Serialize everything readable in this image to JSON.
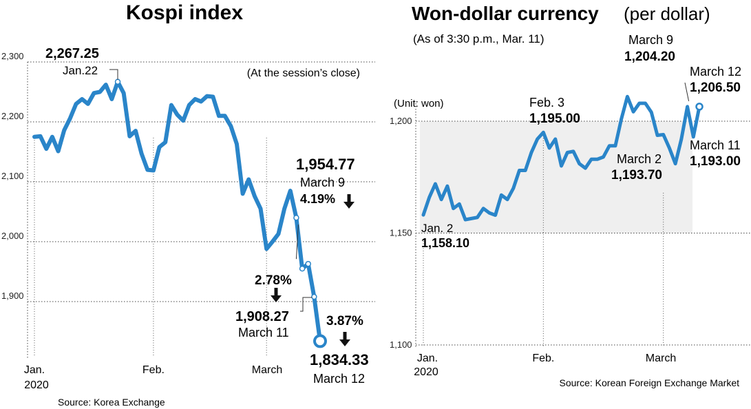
{
  "chart_data": [
    {
      "type": "line",
      "title": "Kospi index",
      "note": "(At the session’s close)",
      "source": "Source: Korea Exchange",
      "yticks": [
        "2,300",
        "2,200",
        "2,100",
        "2,000",
        "1,900"
      ],
      "ylim": [
        1820,
        2320
      ],
      "grid": true,
      "xtick_labels": [
        {
          "label": "Jan.",
          "sub": "2020",
          "at_index": 0
        },
        {
          "label": "Feb.",
          "sub": "",
          "at_index": 20
        },
        {
          "label": "March",
          "sub": "",
          "at_index": 39
        }
      ],
      "series": [
        {
          "color": "#2a85c9",
          "values": [
            2175,
            2176,
            2155,
            2175,
            2151,
            2186,
            2206,
            2230,
            2238,
            2230,
            2248,
            2250,
            2262,
            2238,
            2267,
            2248,
            2176,
            2185,
            2147,
            2120,
            2119,
            2158,
            2166,
            2228,
            2212,
            2202,
            2228,
            2238,
            2234,
            2243,
            2242,
            2210,
            2210,
            2193,
            2163,
            2080,
            2104,
            2076,
            2055,
            1988,
            2000,
            2013,
            2055,
            2085,
            2040,
            1955,
            1963,
            1908,
            1834
          ]
        }
      ],
      "annotations": [
        {
          "value": "2,267.25",
          "label": "Jan.22",
          "at_index": 14
        },
        {
          "value": "1,954.77",
          "label": "March 9",
          "change": "4.19%",
          "direction": "down",
          "at_index": 45
        },
        {
          "value": "1,908.27",
          "label": "March 11",
          "change": "2.78%",
          "direction": "down",
          "at_index": 47
        },
        {
          "value": "1,834.33",
          "label": "March 12",
          "change": "3.87%",
          "direction": "down",
          "at_index": 48
        }
      ]
    },
    {
      "type": "line",
      "title": "Won-dollar currency",
      "title_suffix": "(per dollar)",
      "subtitle": "(As of 3:30 p.m., Mar. 11)",
      "unit": "(Unit: won)",
      "source": "Source: Korean Foreign Exchange Market",
      "yticks": [
        "1,200",
        "1,150",
        "1,100"
      ],
      "ylim": [
        1100,
        1215
      ],
      "grid": true,
      "shaded_band": [
        1150,
        1200
      ],
      "xtick_labels": [
        {
          "label": "Jan.",
          "sub": "2020",
          "at_index": 0
        },
        {
          "label": "Feb.",
          "sub": "",
          "at_index": 20
        },
        {
          "label": "March",
          "sub": "",
          "at_index": 40
        }
      ],
      "series": [
        {
          "color": "#2a85c9",
          "values": [
            1158.1,
            1166,
            1172,
            1165,
            1171,
            1161,
            1163,
            1156,
            1156.5,
            1157,
            1161,
            1159,
            1158,
            1167,
            1165,
            1170,
            1178,
            1178,
            1186,
            1192,
            1195,
            1188,
            1192,
            1180,
            1186,
            1186.5,
            1181,
            1179,
            1183,
            1183,
            1184,
            1189,
            1189,
            1201,
            1211,
            1204.2,
            1208,
            1208,
            1204,
            1193.7,
            1194,
            1188,
            1181,
            1192,
            1206.5,
            1193,
            1206.5
          ]
        }
      ],
      "annotations": [
        {
          "value": "1,158.10",
          "label": "Jan. 2",
          "at_index": 0
        },
        {
          "value": "1,195.00",
          "label": "Feb. 3",
          "at_index": 20
        },
        {
          "value": "1,204.20",
          "label": "March 9",
          "at_index": 35
        },
        {
          "value": "1,193.70",
          "label": "March 2",
          "at_index": 39
        },
        {
          "value": "1,193.00",
          "label": "March 11",
          "at_index": 45
        },
        {
          "value": "1,206.50",
          "label": "March 12",
          "at_index": 46
        }
      ]
    }
  ]
}
